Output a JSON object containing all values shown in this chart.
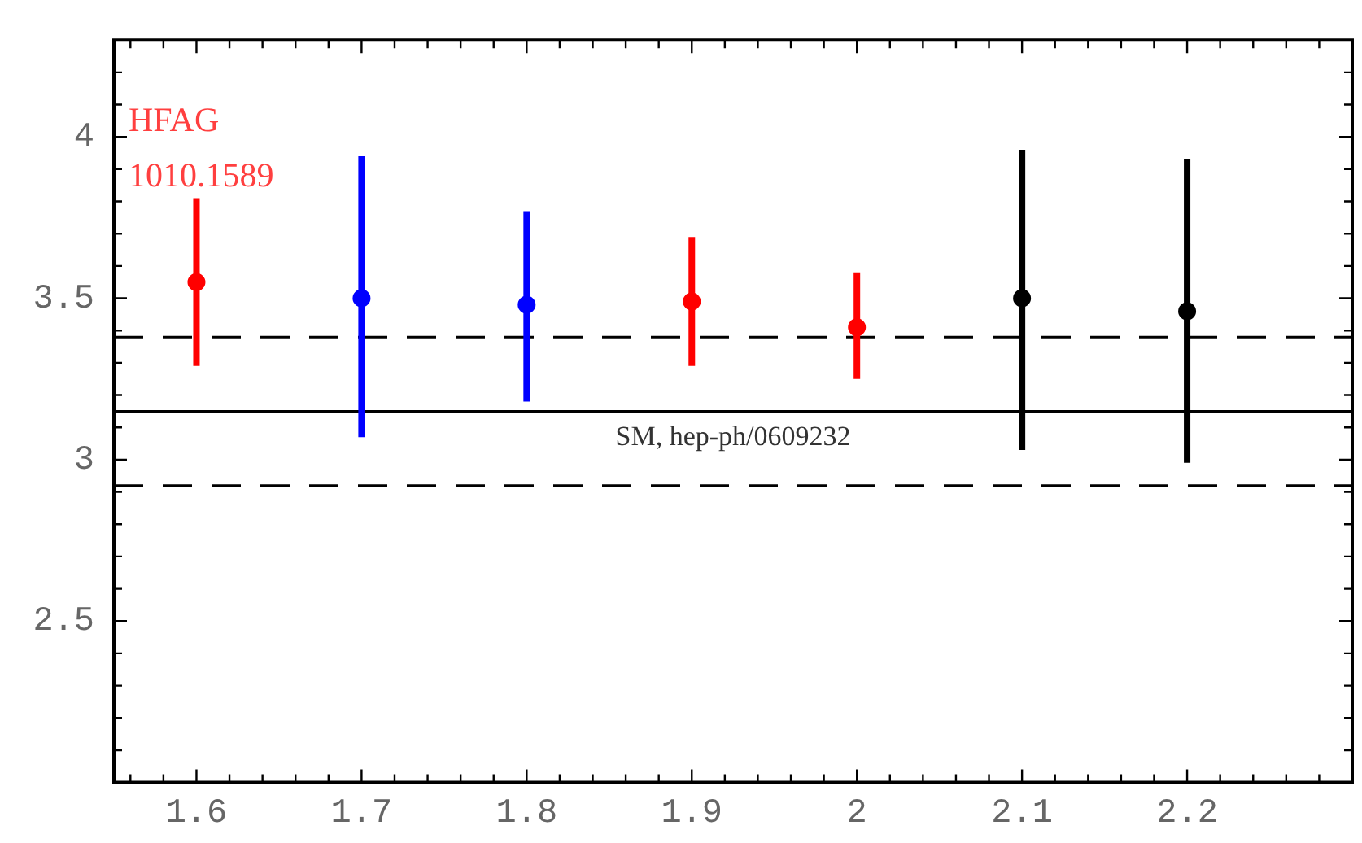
{
  "chart_data": {
    "type": "scatter",
    "series": [
      {
        "color": "#ff0000",
        "x": [
          1.6,
          1.9,
          2.0
        ],
        "values": [
          3.55,
          3.49,
          3.41
        ],
        "errors": [
          [
            3.29,
            3.81
          ],
          [
            3.29,
            3.69
          ],
          [
            3.25,
            3.58
          ]
        ]
      },
      {
        "color": "#0000ff",
        "x": [
          1.7,
          1.8
        ],
        "values": [
          3.5,
          3.48
        ],
        "errors": [
          [
            3.07,
            3.94
          ],
          [
            3.18,
            3.77
          ]
        ]
      },
      {
        "color": "#000000",
        "x": [
          2.1,
          2.2
        ],
        "values": [
          3.5,
          3.46
        ],
        "errors": [
          [
            3.03,
            3.96
          ],
          [
            2.99,
            3.93
          ]
        ]
      }
    ],
    "xlim": [
      1.55,
      2.3
    ],
    "xticks": [
      {
        "value": 1.56,
        "label": null
      },
      {
        "value": 1.58,
        "label": null
      },
      {
        "value": 1.6,
        "label": "1.6"
      },
      {
        "value": 1.62,
        "label": null
      },
      {
        "value": 1.64,
        "label": null
      },
      {
        "value": 1.66,
        "label": null
      },
      {
        "value": 1.68,
        "label": null
      },
      {
        "value": 1.7,
        "label": "1.7"
      },
      {
        "value": 1.72,
        "label": null
      },
      {
        "value": 1.74,
        "label": null
      },
      {
        "value": 1.76,
        "label": null
      },
      {
        "value": 1.78,
        "label": null
      },
      {
        "value": 1.8,
        "label": "1.8"
      },
      {
        "value": 1.82,
        "label": null
      },
      {
        "value": 1.84,
        "label": null
      },
      {
        "value": 1.86,
        "label": null
      },
      {
        "value": 1.88,
        "label": null
      },
      {
        "value": 1.9,
        "label": "1.9"
      },
      {
        "value": 1.92,
        "label": null
      },
      {
        "value": 1.94,
        "label": null
      },
      {
        "value": 1.96,
        "label": null
      },
      {
        "value": 1.98,
        "label": null
      },
      2,
      {
        "value": 2.02,
        "label": null
      },
      {
        "value": 2.04,
        "label": null
      },
      {
        "value": 2.06,
        "label": null
      },
      {
        "value": 2.08,
        "label": null
      },
      {
        "value": 2.1,
        "label": "2.1"
      },
      {
        "value": 2.12,
        "label": null
      },
      {
        "value": 2.14,
        "label": null
      },
      {
        "value": 2.16,
        "label": null
      },
      {
        "value": 2.18,
        "label": null
      },
      {
        "value": 2.2,
        "label": "2.2"
      },
      {
        "value": 2.22,
        "label": null
      },
      {
        "value": 2.24,
        "label": null
      },
      {
        "value": 2.26,
        "label": null
      },
      {
        "value": 2.28,
        "label": null
      }
    ],
    "ylim": [
      2,
      4.3
    ],
    "yticks": [
      {
        "value": 2.1,
        "label": null
      },
      {
        "value": 2.2,
        "label": null
      },
      {
        "value": 2.3,
        "label": null
      },
      {
        "value": 2.4,
        "label": null
      },
      {
        "value": 2.5,
        "label": "2.5"
      },
      {
        "value": 2.6,
        "label": null
      },
      {
        "value": 2.7,
        "label": null
      },
      {
        "value": 2.8,
        "label": null
      },
      {
        "value": 2.9,
        "label": null
      },
      3,
      {
        "value": 3.1,
        "label": null
      },
      {
        "value": 3.2,
        "label": null
      },
      {
        "value": 3.3,
        "label": null
      },
      {
        "value": 3.4,
        "label": null
      },
      {
        "value": 3.5,
        "label": "3.5"
      },
      {
        "value": 3.6,
        "label": null
      },
      {
        "value": 3.7,
        "label": null
      },
      {
        "value": 3.8,
        "label": null
      },
      {
        "value": 3.9,
        "label": null
      },
      4,
      {
        "value": 4.1,
        "label": null
      },
      {
        "value": 4.2,
        "label": null
      }
    ],
    "ref_lines": [
      {
        "axis": "y",
        "value": 3.38,
        "line_style": "dashed",
        "color": "#000000"
      },
      {
        "axis": "y",
        "value": 3.15,
        "line_style": "solid",
        "color": "#000000",
        "label": "SM, hep-ph/0609232"
      },
      {
        "axis": "y",
        "value": 2.92,
        "line_style": "dashed",
        "color": "#000000"
      }
    ],
    "annotations": [
      "HFAG\n1010.1589"
    ],
    "marker": "circle",
    "grid": false,
    "legend": false
  }
}
